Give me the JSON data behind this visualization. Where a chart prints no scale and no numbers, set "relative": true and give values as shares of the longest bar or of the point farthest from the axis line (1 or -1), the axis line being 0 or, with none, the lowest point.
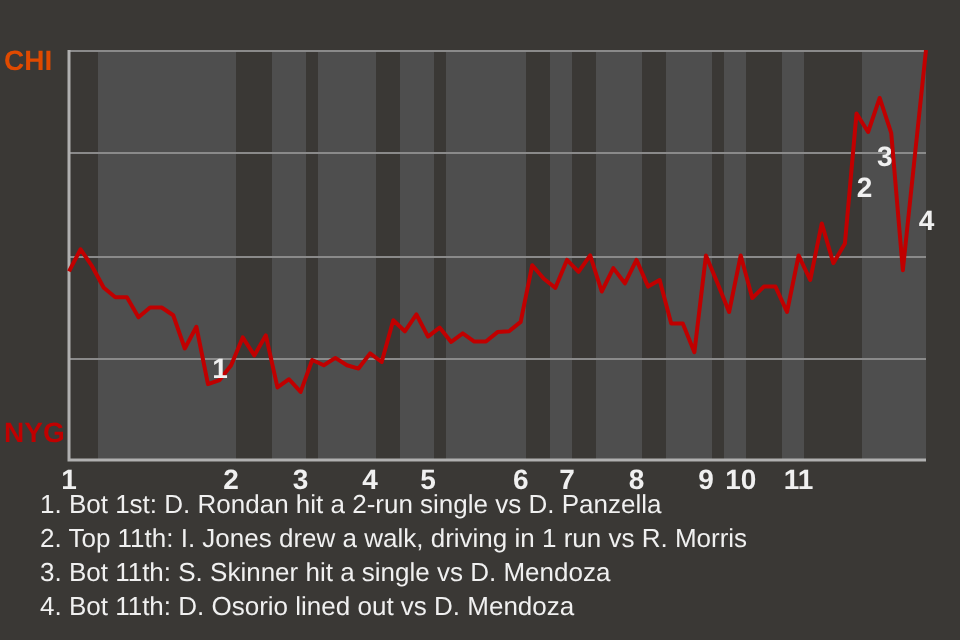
{
  "chart_data": {
    "type": "line",
    "relative": true,
    "categories": [
      "1",
      null,
      null,
      null,
      null,
      null,
      null,
      null,
      null,
      null,
      null,
      null,
      null,
      null,
      "2",
      null,
      null,
      null,
      null,
      null,
      "3",
      null,
      null,
      null,
      null,
      null,
      "4",
      null,
      null,
      null,
      null,
      "5",
      null,
      null,
      null,
      null,
      null,
      null,
      null,
      "6",
      null,
      null,
      null,
      "7",
      null,
      null,
      null,
      null,
      null,
      "8",
      null,
      null,
      null,
      null,
      null,
      "9",
      null,
      null,
      "10",
      null,
      null,
      null,
      null,
      "11",
      null,
      null,
      null,
      null,
      null,
      null,
      null,
      null,
      null,
      null,
      null
    ],
    "values": [
      0.46,
      0.514,
      0.472,
      0.42,
      0.397,
      0.397,
      0.348,
      0.372,
      0.372,
      0.353,
      0.272,
      0.325,
      0.185,
      0.195,
      0.231,
      0.299,
      0.255,
      0.304,
      0.177,
      0.197,
      0.166,
      0.244,
      0.231,
      0.249,
      0.231,
      0.223,
      0.26,
      0.239,
      0.341,
      0.314,
      0.355,
      0.301,
      0.323,
      0.288,
      0.309,
      0.289,
      0.289,
      0.312,
      0.314,
      0.337,
      0.475,
      0.442,
      0.42,
      0.488,
      0.459,
      0.499,
      0.411,
      0.468,
      0.431,
      0.488,
      0.423,
      0.439,
      0.333,
      0.333,
      0.263,
      0.499,
      0.431,
      0.361,
      0.499,
      0.395,
      0.423,
      0.423,
      0.361,
      0.499,
      0.439,
      0.577,
      0.48,
      0.528,
      0.845,
      0.8,
      0.883,
      0.797,
      0.463,
      0.732,
      1
    ],
    "color": "#c00000",
    "grid": "y",
    "marker": "none",
    "legend": false,
    "annotations": [
      "CHI",
      "NYG",
      "1",
      "2",
      "3",
      "4",
      "1. Bot 1st: D. Rondan hit a 2-run single vs D. Panzella",
      "2. Top 11th: I. Jones drew a walk, driving in 1 run vs R. Morris",
      "3. Bot 11th: S. Skinner hit a single vs D. Mendoza",
      "4. Bot 11th: D. Osorio lined out vs D. Mendoza"
    ]
  }
}
